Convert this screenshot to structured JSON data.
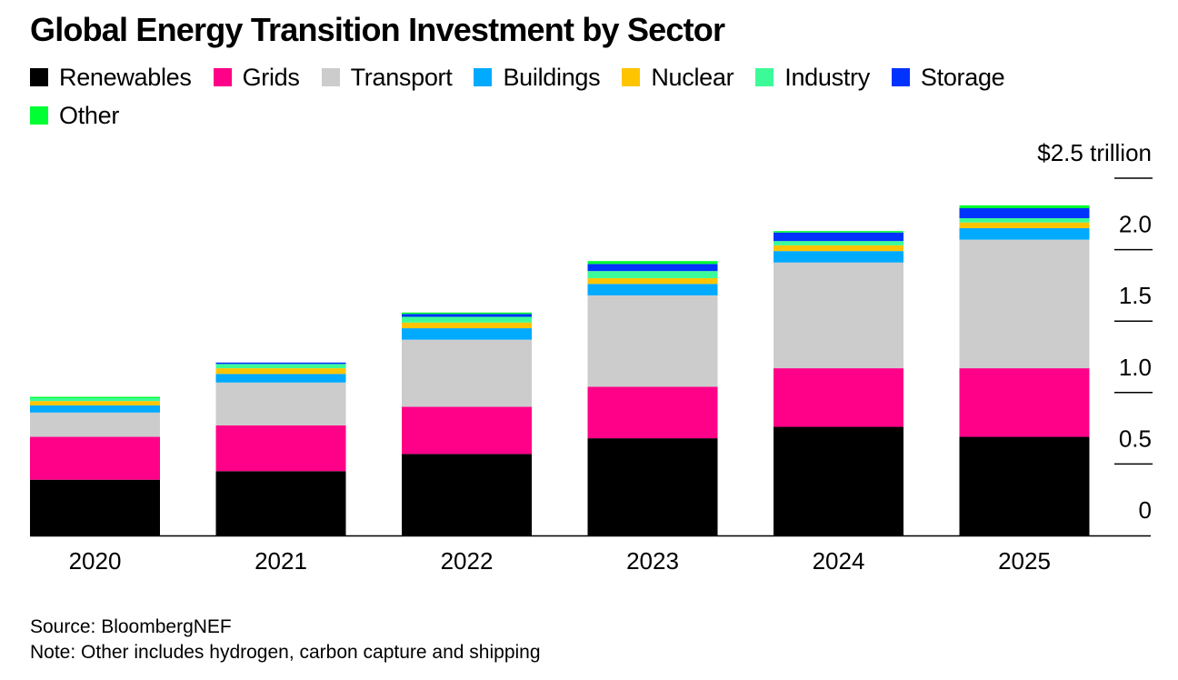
{
  "chart_data": {
    "type": "bar",
    "stacked": true,
    "title": "Global Energy Transition Investment by Sector",
    "xlabel": "",
    "ylabel": "$ trillion",
    "unit_label": "$2.5 trillion",
    "ylim": [
      0,
      2.5
    ],
    "yticks": [
      0,
      0.5,
      1.0,
      1.5,
      2.0,
      2.5
    ],
    "ytick_labels": [
      "0",
      "0.5",
      "1.0",
      "1.5",
      "2.0",
      "$2.5 trillion"
    ],
    "y_axis_position": "right",
    "legend_position": "top-left",
    "grid": false,
    "categories": [
      "2020",
      "2021",
      "2022",
      "2023",
      "2024",
      "2025"
    ],
    "series": [
      {
        "name": "Renewables",
        "color": "#000000",
        "values": [
          0.39,
          0.45,
          0.57,
          0.68,
          0.76,
          0.69
        ]
      },
      {
        "name": "Grids",
        "color": "#ff0088",
        "values": [
          0.3,
          0.32,
          0.33,
          0.36,
          0.41,
          0.48
        ]
      },
      {
        "name": "Transport",
        "color": "#cccccc",
        "values": [
          0.17,
          0.3,
          0.47,
          0.64,
          0.74,
          0.9
        ]
      },
      {
        "name": "Buildings",
        "color": "#00aaff",
        "values": [
          0.05,
          0.06,
          0.08,
          0.08,
          0.08,
          0.08
        ]
      },
      {
        "name": "Nuclear",
        "color": "#ffc400",
        "values": [
          0.03,
          0.04,
          0.04,
          0.04,
          0.04,
          0.04
        ]
      },
      {
        "name": "Industry",
        "color": "#3dfa99",
        "values": [
          0.02,
          0.03,
          0.04,
          0.05,
          0.03,
          0.03
        ]
      },
      {
        "name": "Storage",
        "color": "#0033ff",
        "values": [
          0.0,
          0.01,
          0.02,
          0.05,
          0.06,
          0.07
        ]
      },
      {
        "name": "Other",
        "color": "#00ff33",
        "values": [
          0.01,
          0.0,
          0.01,
          0.02,
          0.01,
          0.02
        ]
      }
    ]
  },
  "footer": {
    "source": "Source: BloombergNEF",
    "note": "Note: Other includes hydrogen, carbon capture and shipping"
  }
}
